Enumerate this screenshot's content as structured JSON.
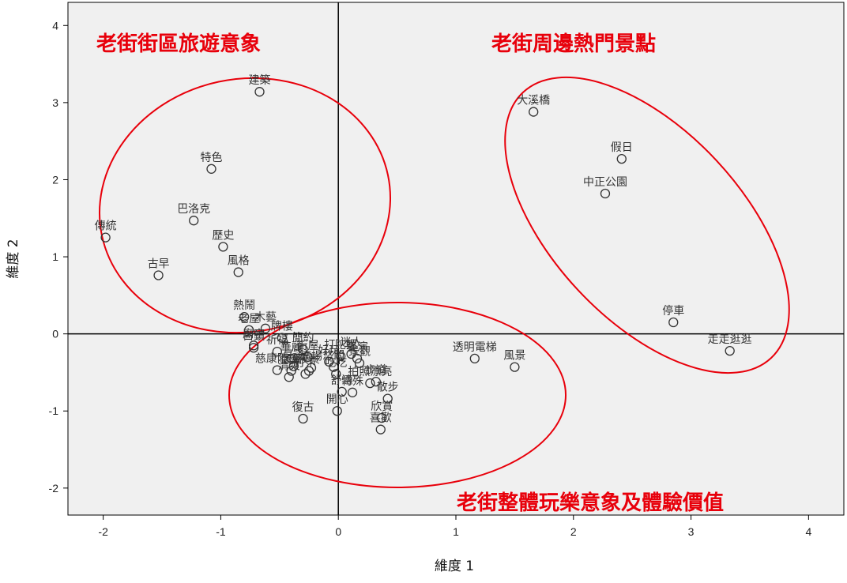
{
  "chart_data": {
    "type": "scatter",
    "title": "",
    "xlabel": "維度 1",
    "ylabel": "維度 2",
    "xlim": [
      -2.3,
      4.3
    ],
    "ylim": [
      -2.35,
      4.3
    ],
    "xticks": [
      -2,
      -1,
      0,
      1,
      2,
      3,
      4
    ],
    "yticks": [
      -2,
      -1,
      0,
      1,
      2,
      3,
      4
    ],
    "grid": false,
    "reference_lines": {
      "x": 0,
      "y": 0
    },
    "points": [
      {
        "label": "建築",
        "x": -0.67,
        "y": 3.14
      },
      {
        "label": "特色",
        "x": -1.08,
        "y": 2.14
      },
      {
        "label": "巴洛克",
        "x": -1.23,
        "y": 1.47
      },
      {
        "label": "傳統",
        "x": -1.98,
        "y": 1.25
      },
      {
        "label": "歷史",
        "x": -0.98,
        "y": 1.13
      },
      {
        "label": "古早",
        "x": -1.53,
        "y": 0.76
      },
      {
        "label": "風格",
        "x": -0.85,
        "y": 0.8
      },
      {
        "label": "熱鬧",
        "x": -0.8,
        "y": 0.22
      },
      {
        "label": "木藝",
        "x": -0.62,
        "y": 0.07
      },
      {
        "label": "老屋",
        "x": -0.76,
        "y": 0.05
      },
      {
        "label": "牌樓",
        "x": -0.48,
        "y": -0.05
      },
      {
        "label": "廟宇",
        "x": -0.72,
        "y": -0.15
      },
      {
        "label": "占鎮",
        "x": -0.72,
        "y": -0.18
      },
      {
        "label": "祈福",
        "x": -0.52,
        "y": -0.23
      },
      {
        "label": "簡約",
        "x": -0.3,
        "y": -0.2
      },
      {
        "label": "慈康陸橋",
        "x": -0.52,
        "y": -0.47
      },
      {
        "label": "華麗",
        "x": -0.4,
        "y": -0.32
      },
      {
        "label": "街屋",
        "x": -0.26,
        "y": -0.3
      },
      {
        "label": "亭子",
        "x": -0.38,
        "y": -0.42
      },
      {
        "label": "廣場",
        "x": -0.23,
        "y": -0.44
      },
      {
        "label": "好玩",
        "x": -0.08,
        "y": -0.36
      },
      {
        "label": "迷人",
        "x": 0.11,
        "y": -0.26
      },
      {
        "label": "表演",
        "x": 0.16,
        "y": -0.32
      },
      {
        "label": "景觀",
        "x": 0.18,
        "y": -0.38
      },
      {
        "label": "打陀螺",
        "x": 0.02,
        "y": -0.29
      },
      {
        "label": "悠閒",
        "x": -0.04,
        "y": -0.43
      },
      {
        "label": "打卡",
        "x": -0.28,
        "y": -0.52
      },
      {
        "label": "清爽",
        "x": -0.42,
        "y": -0.56
      },
      {
        "label": "懷舊",
        "x": -0.4,
        "y": -0.48
      },
      {
        "label": "夜景",
        "x": -0.25,
        "y": -0.48
      },
      {
        "label": "拍照漂亮",
        "x": 0.27,
        "y": -0.64
      },
      {
        "label": "步道",
        "x": 0.32,
        "y": -0.62
      },
      {
        "label": "復古",
        "x": -0.3,
        "y": -1.1
      },
      {
        "label": "舒適",
        "x": 0.03,
        "y": -0.75
      },
      {
        "label": "特殊",
        "x": 0.12,
        "y": -0.76
      },
      {
        "label": "散步",
        "x": 0.42,
        "y": -0.84
      },
      {
        "label": "開心",
        "x": -0.01,
        "y": -1.0
      },
      {
        "label": "欣賞",
        "x": 0.37,
        "y": -1.09
      },
      {
        "label": "喜歡",
        "x": 0.36,
        "y": -1.24
      },
      {
        "label": "吃吃",
        "x": -0.02,
        "y": -0.52
      },
      {
        "label": "透明電梯",
        "x": 1.16,
        "y": -0.32
      },
      {
        "label": "風景",
        "x": 1.5,
        "y": -0.43
      },
      {
        "label": "大溪橋",
        "x": 1.66,
        "y": 2.88
      },
      {
        "label": "假日",
        "x": 2.41,
        "y": 2.27
      },
      {
        "label": "中正公園",
        "x": 2.27,
        "y": 1.82
      },
      {
        "label": "停車",
        "x": 2.85,
        "y": 0.15
      },
      {
        "label": "走走逛逛",
        "x": 3.33,
        "y": -0.22
      }
    ],
    "groups": [
      "老街街區旅遊意象",
      "老街周邊熱門景點",
      "老街整體玩樂意象及體驗價值"
    ]
  }
}
